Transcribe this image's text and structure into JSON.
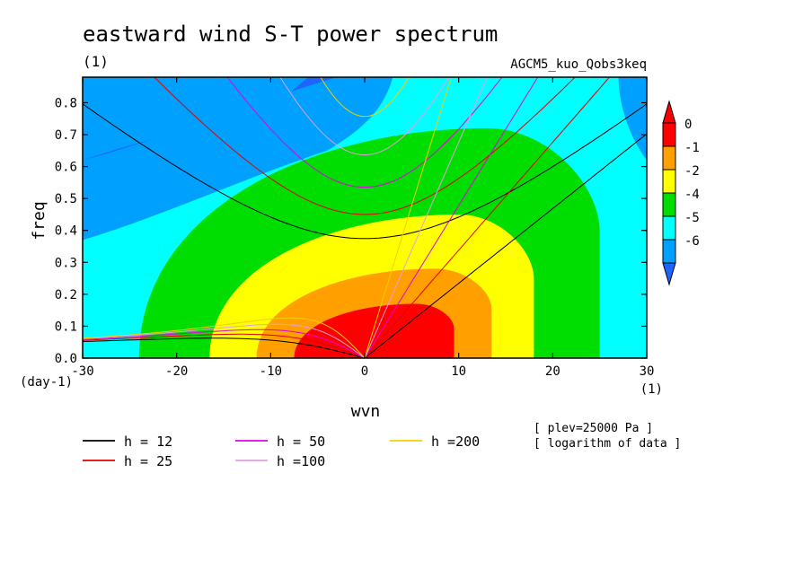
{
  "chart_data": {
    "type": "heatmap",
    "title": "eastward wind S-T power spectrum",
    "subtitle_left": "(1)",
    "subtitle_right": "AGCM5_kuo_Qobs3keq",
    "xlabel": "wvn",
    "ylabel": "freq",
    "x_unit": "(1)",
    "y_unit": "(day-1)",
    "xlim": [
      -30,
      30
    ],
    "ylim": [
      0,
      0.88
    ],
    "x_ticks": [
      "-30",
      "-20",
      "-10",
      "0",
      "10",
      "20",
      "30"
    ],
    "y_ticks": [
      "0.0",
      "0.1",
      "0.2",
      "0.3",
      "0.4",
      "0.5",
      "0.6",
      "0.7",
      "0.8"
    ],
    "colorbar": {
      "levels": [
        "0",
        "-1",
        "-2",
        "-4",
        "-5",
        "-6"
      ],
      "colors": [
        "#ff0000",
        "#ff9f00",
        "#ffff00",
        "#00dd00",
        "#00ffff",
        "#00a0ff",
        "#1e64ff"
      ],
      "extend": "both",
      "position": "right"
    },
    "contour_levels": [
      {
        "level": 0,
        "peak_x": 5.5,
        "peak_y": 0.17,
        "left_x": -7.5,
        "right_x": 9.5
      },
      {
        "level": -1,
        "peak_x": 7.5,
        "peak_y": 0.28,
        "left_x": -11.5,
        "right_x": 13.5
      },
      {
        "level": -2,
        "peak_x": 10,
        "peak_y": 0.45,
        "left_x": -16.5,
        "right_x": 18
      },
      {
        "level": -4,
        "peak_x": 13,
        "peak_y": 0.72,
        "left_x": -24,
        "right_x": 25
      }
    ],
    "dispersion_curves": [
      {
        "name": "h = 12",
        "h": 12,
        "color": "#000000"
      },
      {
        "name": "h = 25",
        "h": 25,
        "color": "#e00000"
      },
      {
        "name": "h = 50",
        "h": 50,
        "color": "#e000e0"
      },
      {
        "name": "h =100",
        "h": 100,
        "color": "#e0a0e0"
      },
      {
        "name": "h =200",
        "h": 200,
        "color": "#f0d000"
      }
    ],
    "notes": [
      "[ plev=25000 Pa ]",
      "[ logarithm of data ]"
    ]
  }
}
